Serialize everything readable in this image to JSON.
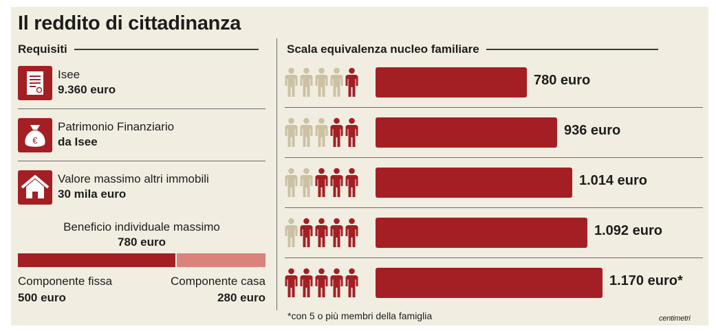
{
  "title": "Il reddito di cittadinanza",
  "requisiti": {
    "heading": "Requisiti",
    "items": [
      {
        "icon": "document-icon",
        "line1": "Isee",
        "line2": "9.360 euro"
      },
      {
        "icon": "money-bag-euro-icon",
        "line1": "Patrimonio Finanziario",
        "line2": "da Isee"
      },
      {
        "icon": "house-icon",
        "line1": "Valore massimo altri immobili",
        "line2": "30 mila euro"
      }
    ],
    "benefit_label": "Beneficio individuale massimo",
    "benefit_value": "780 euro",
    "components": [
      {
        "label": "Componente fissa",
        "value": "500 euro",
        "amount": 500,
        "color": "#a31f24"
      },
      {
        "label": "Componente casa",
        "value": "280 euro",
        "amount": 280,
        "color": "#d9837a"
      }
    ]
  },
  "chart_data": {
    "type": "bar",
    "title": "Scala equivalenza nucleo familiare",
    "categories": [
      "1 membro",
      "2 membri",
      "3 membri",
      "4 membri",
      "5 membri"
    ],
    "members": [
      1,
      2,
      3,
      4,
      5
    ],
    "values": [
      780,
      936,
      1014,
      1092,
      1170
    ],
    "value_labels": [
      "780 euro",
      "936 euro",
      "1.014 euro",
      "1.092 euro",
      "1.170 euro*"
    ],
    "xlim": [
      0,
      1170
    ],
    "orientation": "horizontal"
  },
  "colors": {
    "accent": "#a31f24",
    "inactive_person": "#cbc2a4",
    "light_accent": "#d9837a",
    "background": "#f1ede1"
  },
  "footnote": "*con 5 o più membri della famiglia",
  "brand": "centimetri"
}
